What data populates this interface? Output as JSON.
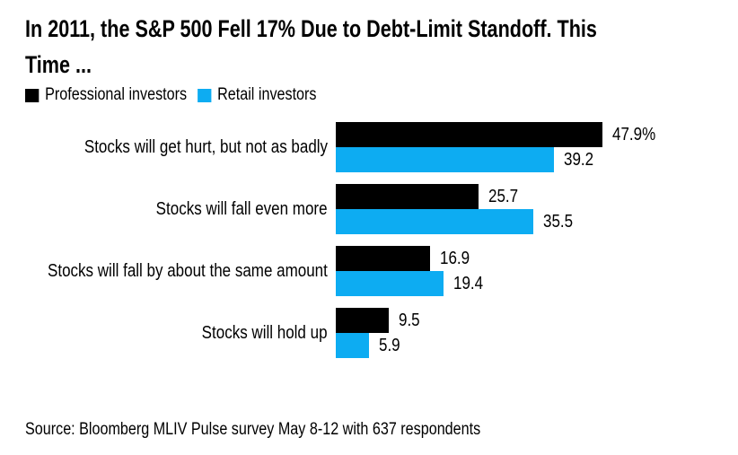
{
  "header": {
    "title_line1": "In 2011, the S&P 500 Fell 17% Due to Debt-Limit Standoff. This",
    "title_line2": "Time ..."
  },
  "legend": {
    "items": [
      {
        "label": "Professional investors",
        "color": "#000000"
      },
      {
        "label": "Retail investors",
        "color": "#0dacf2"
      }
    ]
  },
  "chart_data": {
    "type": "bar",
    "orientation": "horizontal",
    "title": "In 2011, the S&P 500 Fell 17% Due to Debt-Limit Standoff. This Time ...",
    "categories": [
      "Stocks will get hurt, but not as badly",
      "Stocks will fall even more",
      "Stocks will fall by about the same amount",
      "Stocks will hold up"
    ],
    "series": [
      {
        "name": "Professional investors",
        "color": "#000000",
        "values": [
          47.9,
          25.7,
          16.9,
          9.5
        ],
        "value_labels": [
          "47.9%",
          "25.7",
          "16.9",
          "9.5"
        ]
      },
      {
        "name": "Retail investors",
        "color": "#0dacf2",
        "values": [
          39.2,
          35.5,
          19.4,
          5.9
        ],
        "value_labels": [
          "39.2",
          "35.5",
          "19.4",
          "5.9"
        ]
      }
    ],
    "xlim": [
      0,
      50
    ],
    "grid": false,
    "legend_position": "top",
    "value_unit": "percent of respondents"
  },
  "footer": {
    "source": "Source: Bloomberg MLIV Pulse survey May 8-12 with 637 respondents"
  }
}
